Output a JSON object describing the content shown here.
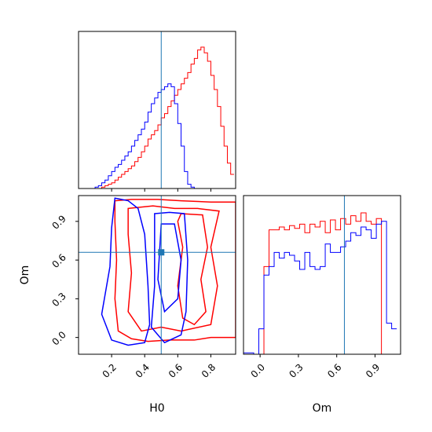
{
  "colors": {
    "red": "#ff0000",
    "blue": "#0000ff",
    "truth": "#1f77b4",
    "axes": "#000000"
  },
  "chart_data": [
    {
      "panel": "H0 histogram",
      "type": "step-histogram",
      "xlim": [
        0.0,
        0.95
      ],
      "bin_edges": [
        0.0,
        0.02,
        0.04,
        0.06,
        0.08,
        0.1,
        0.12,
        0.14,
        0.16,
        0.18,
        0.2,
        0.22,
        0.24,
        0.26,
        0.28,
        0.3,
        0.32,
        0.34,
        0.36,
        0.38,
        0.4,
        0.42,
        0.44,
        0.46,
        0.48,
        0.5,
        0.52,
        0.54,
        0.56,
        0.58,
        0.6,
        0.62,
        0.64,
        0.66,
        0.68,
        0.7,
        0.72,
        0.74,
        0.76,
        0.78,
        0.8,
        0.82,
        0.84,
        0.86,
        0.88,
        0.9,
        0.92,
        0.94
      ],
      "series": [
        {
          "color": "red",
          "values": [
            0,
            0,
            0,
            0,
            0,
            0,
            0,
            0.01,
            0.02,
            0.03,
            0.04,
            0.06,
            0.08,
            0.1,
            0.12,
            0.14,
            0.16,
            0.19,
            0.22,
            0.26,
            0.3,
            0.35,
            0.38,
            0.41,
            0.45,
            0.5,
            0.53,
            0.58,
            0.62,
            0.66,
            0.7,
            0.74,
            0.78,
            0.82,
            0.88,
            0.92,
            0.98,
            1.0,
            0.96,
            0.9,
            0.8,
            0.7,
            0.58,
            0.44,
            0.3,
            0.18,
            0.1
          ]
        },
        {
          "color": "blue",
          "values": [
            0,
            0,
            0,
            0,
            0,
            0.01,
            0.02,
            0.04,
            0.06,
            0.09,
            0.12,
            0.15,
            0.17,
            0.2,
            0.23,
            0.26,
            0.3,
            0.34,
            0.38,
            0.42,
            0.47,
            0.54,
            0.6,
            0.64,
            0.68,
            0.7,
            0.72,
            0.74,
            0.72,
            0.6,
            0.46,
            0.3,
            0.12,
            0.03,
            0.01,
            0,
            0,
            0,
            0,
            0,
            0,
            0,
            0,
            0,
            0,
            0,
            0
          ]
        }
      ],
      "truth_x": 0.5
    },
    {
      "panel": "H0 vs Om contours",
      "type": "contour",
      "xlabel": "H0",
      "ylabel": "Om",
      "xlim": [
        0.0,
        0.95
      ],
      "ylim": [
        -0.13,
        1.1
      ],
      "xticks": [
        0.2,
        0.4,
        0.6,
        0.8
      ],
      "yticks": [
        0.0,
        0.3,
        0.6,
        0.9
      ],
      "series": [
        {
          "color": "red",
          "contours": [
            [
              [
                0.22,
                1.06
              ],
              [
                0.32,
                1.07
              ],
              [
                0.48,
                1.07
              ],
              [
                0.62,
                1.06
              ],
              [
                0.8,
                1.05
              ],
              [
                0.95,
                1.05
              ],
              [
                0.95,
                0.0
              ],
              [
                0.8,
                0.0
              ],
              [
                0.7,
                -0.02
              ],
              [
                0.55,
                -0.02
              ],
              [
                0.42,
                -0.03
              ],
              [
                0.32,
                -0.01
              ],
              [
                0.24,
                0.05
              ],
              [
                0.22,
                0.3
              ],
              [
                0.23,
                0.6
              ],
              [
                0.22,
                0.9
              ],
              [
                0.22,
                1.06
              ]
            ],
            [
              [
                0.3,
                1.0
              ],
              [
                0.45,
                1.02
              ],
              [
                0.58,
                1.0
              ],
              [
                0.72,
                1.0
              ],
              [
                0.85,
                0.98
              ],
              [
                0.8,
                0.7
              ],
              [
                0.84,
                0.4
              ],
              [
                0.8,
                0.1
              ],
              [
                0.62,
                0.05
              ],
              [
                0.5,
                0.08
              ],
              [
                0.38,
                0.05
              ],
              [
                0.3,
                0.2
              ],
              [
                0.32,
                0.5
              ],
              [
                0.3,
                0.8
              ],
              [
                0.3,
                1.0
              ]
            ],
            [
              [
                0.62,
                0.96
              ],
              [
                0.75,
                0.95
              ],
              [
                0.78,
                0.7
              ],
              [
                0.74,
                0.45
              ],
              [
                0.77,
                0.2
              ],
              [
                0.7,
                0.1
              ],
              [
                0.63,
                0.15
              ],
              [
                0.6,
                0.4
              ],
              [
                0.63,
                0.7
              ],
              [
                0.6,
                0.9
              ],
              [
                0.62,
                0.96
              ]
            ]
          ]
        },
        {
          "color": "blue",
          "contours": [
            [
              [
                0.22,
                1.08
              ],
              [
                0.3,
                1.06
              ],
              [
                0.36,
                1.0
              ],
              [
                0.4,
                0.8
              ],
              [
                0.42,
                0.4
              ],
              [
                0.43,
                0.1
              ],
              [
                0.4,
                -0.04
              ],
              [
                0.3,
                -0.06
              ],
              [
                0.2,
                -0.02
              ],
              [
                0.14,
                0.18
              ],
              [
                0.19,
                0.55
              ],
              [
                0.2,
                0.85
              ],
              [
                0.22,
                1.08
              ]
            ],
            [
              [
                0.46,
                0.96
              ],
              [
                0.55,
                0.97
              ],
              [
                0.64,
                0.96
              ],
              [
                0.66,
                0.6
              ],
              [
                0.65,
                0.2
              ],
              [
                0.62,
                0.02
              ],
              [
                0.52,
                -0.04
              ],
              [
                0.44,
                0.08
              ],
              [
                0.46,
                0.4
              ],
              [
                0.46,
                0.7
              ],
              [
                0.46,
                0.96
              ]
            ],
            [
              [
                0.5,
                0.88
              ],
              [
                0.58,
                0.88
              ],
              [
                0.62,
                0.6
              ],
              [
                0.6,
                0.3
              ],
              [
                0.52,
                0.2
              ],
              [
                0.48,
                0.45
              ],
              [
                0.5,
                0.88
              ]
            ]
          ]
        }
      ],
      "truth": [
        0.5,
        0.66
      ]
    },
    {
      "panel": "Om histogram",
      "type": "step-histogram",
      "xlabel": "Om",
      "xlim": [
        -0.13,
        1.1
      ],
      "xticks": [
        0.0,
        0.3,
        0.6,
        0.9
      ],
      "bin_edges": [
        -0.13,
        -0.09,
        -0.05,
        -0.01,
        0.03,
        0.07,
        0.11,
        0.15,
        0.19,
        0.23,
        0.27,
        0.31,
        0.35,
        0.39,
        0.43,
        0.47,
        0.51,
        0.55,
        0.59,
        0.63,
        0.67,
        0.71,
        0.75,
        0.79,
        0.83,
        0.87,
        0.91,
        0.95,
        0.99,
        1.03,
        1.07
      ],
      "series": [
        {
          "color": "red",
          "values": [
            0,
            0,
            0,
            0,
            0.62,
            0.88,
            0.88,
            0.9,
            0.88,
            0.91,
            0.89,
            0.92,
            0.86,
            0.92,
            0.9,
            0.94,
            0.86,
            0.95,
            0.88,
            0.96,
            0.92,
            0.98,
            0.94,
            1.0,
            0.94,
            0.92,
            0.96,
            0,
            0,
            0
          ]
        },
        {
          "color": "blue",
          "values": [
            0.01,
            0.01,
            0,
            0.18,
            0.56,
            0.62,
            0.72,
            0.68,
            0.72,
            0.7,
            0.66,
            0.6,
            0.72,
            0.62,
            0.6,
            0.62,
            0.78,
            0.72,
            0.72,
            0.76,
            0.8,
            0.86,
            0.84,
            0.9,
            0.88,
            0.82,
            0.92,
            0.94,
            0.22,
            0.18
          ]
        }
      ],
      "truth_x": 0.66
    }
  ]
}
